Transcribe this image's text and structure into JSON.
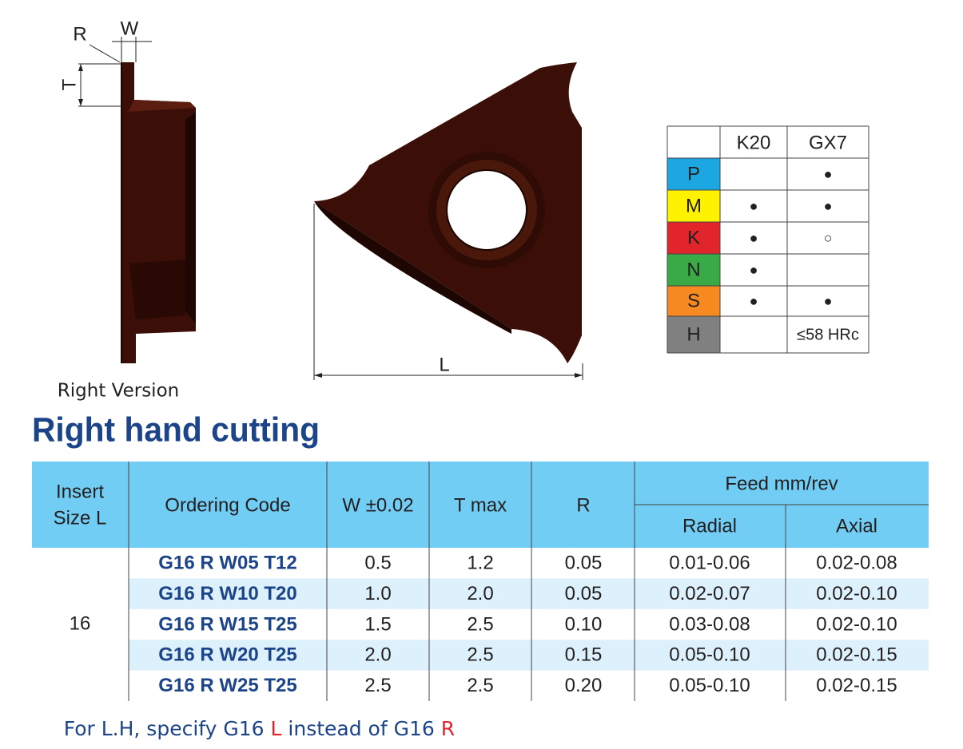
{
  "drawing": {
    "label_r": "R",
    "label_w": "W",
    "label_t": "T",
    "label_l": "L",
    "caption": "Right Version"
  },
  "grades": {
    "columns": [
      "K20",
      "GX7"
    ],
    "rows": [
      {
        "group": "P",
        "color": "#1ca6e2",
        "marks": [
          null,
          "●"
        ]
      },
      {
        "group": "M",
        "color": "#fff200",
        "marks": [
          "●",
          "●"
        ]
      },
      {
        "group": "K",
        "color": "#e1252b",
        "marks": [
          "●",
          "○"
        ]
      },
      {
        "group": "N",
        "color": "#3aaa47",
        "marks": [
          "●",
          null
        ]
      },
      {
        "group": "S",
        "color": "#f6891f",
        "marks": [
          "●",
          "●"
        ]
      },
      {
        "group": "H",
        "color": "#808080",
        "marks": [
          null,
          "≤58 HRc"
        ]
      }
    ]
  },
  "title": "Right hand cutting",
  "table": {
    "header": {
      "insert_size": [
        "Insert",
        "Size L"
      ],
      "ordering_code": "Ordering Code",
      "w": "W ±0.02",
      "t": "T max",
      "r": "R",
      "feed": "Feed mm/rev",
      "radial": "Radial",
      "axial": "Axial"
    },
    "insert_size": "16",
    "rows": [
      [
        "G16 R W05 T12",
        "0.5",
        "1.2",
        "0.05",
        "0.01-0.06",
        "0.02-0.08"
      ],
      [
        "G16 R W10 T20",
        "1.0",
        "2.0",
        "0.05",
        "0.02-0.07",
        "0.02-0.10"
      ],
      [
        "G16 R W15 T25",
        "1.5",
        "2.5",
        "0.10",
        "0.03-0.08",
        "0.02-0.10"
      ],
      [
        "G16 R W20 T25",
        "2.0",
        "2.5",
        "0.15",
        "0.05-0.10",
        "0.02-0.15"
      ],
      [
        "G16 R W25 T25",
        "2.5",
        "2.5",
        "0.20",
        "0.05-0.10",
        "0.02-0.15"
      ]
    ]
  },
  "footnote": [
    "For L.H, specify G16 ",
    "L",
    " instead of G16 ",
    "R"
  ]
}
